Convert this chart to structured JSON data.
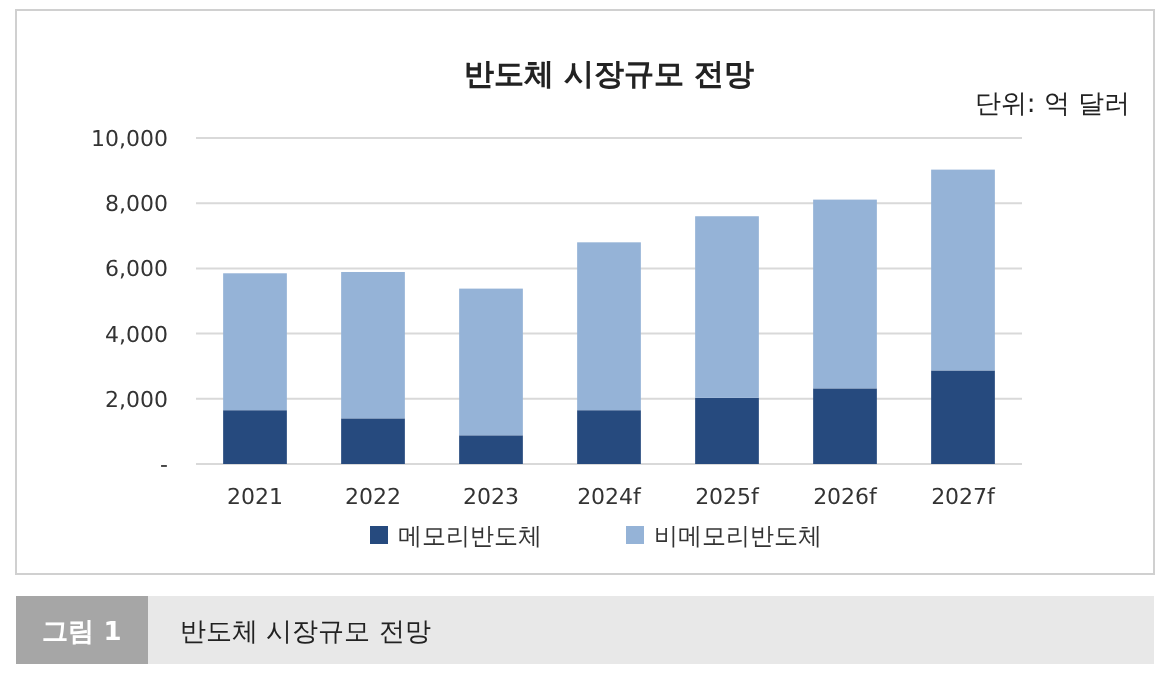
{
  "chart_data": {
    "type": "bar",
    "title": "반도체 시장규모 전망",
    "stacked": true,
    "categories": [
      "2021",
      "2022",
      "2023",
      "2024f",
      "2025f",
      "2026f",
      "2027f"
    ],
    "series": [
      {
        "name": "메모리반도체",
        "color": "#264a7e",
        "values": [
          1650,
          1400,
          880,
          1650,
          2030,
          2320,
          2870
        ]
      },
      {
        "name": "비메모리반도체",
        "color": "#95b3d7",
        "values": [
          4200,
          4490,
          4500,
          5150,
          5570,
          5790,
          6160
        ]
      }
    ],
    "ylim": [
      0,
      10000
    ],
    "yticks": [
      {
        "value": 0,
        "label": "-"
      },
      {
        "value": 2000,
        "label": "2,000"
      },
      {
        "value": 4000,
        "label": "4,000"
      },
      {
        "value": 6000,
        "label": "6,000"
      },
      {
        "value": 8000,
        "label": "8,000"
      },
      {
        "value": 10000,
        "label": "10,000"
      }
    ],
    "grid": "y",
    "legend": "bottom",
    "annotations": [
      "단위: 억 달러",
      "그림 1",
      "반도체 시장규모 전망"
    ]
  }
}
